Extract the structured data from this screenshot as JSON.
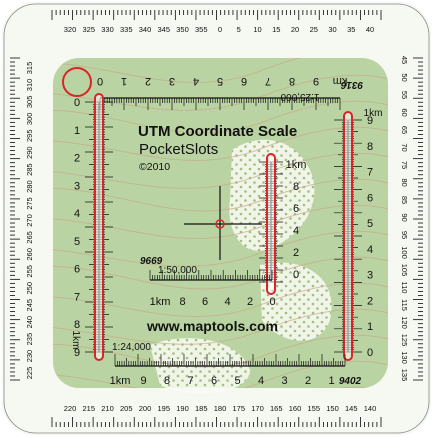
{
  "colors": {
    "map_green": "#b9d4a2",
    "map_green_dark": "#a6c78c",
    "map_light": "#e8efd9",
    "contour": "#c9a887",
    "ink": "#111111",
    "slot_red": "#d9242a",
    "frame": "#fbfbf7"
  },
  "compass": {
    "top_labels": [
      "320",
      "325",
      "330",
      "335",
      "340",
      "345",
      "350",
      "355",
      "0",
      "5",
      "10",
      "15",
      "20",
      "25",
      "30",
      "35",
      "40"
    ],
    "right_labels": [
      "45",
      "50",
      "55",
      "60",
      "65",
      "70",
      "75",
      "80",
      "85",
      "90",
      "95",
      "100",
      "105",
      "110",
      "115",
      "120",
      "125",
      "130",
      "135"
    ],
    "bottom_labels": [
      "220",
      "215",
      "210",
      "205",
      "200",
      "195",
      "190",
      "185",
      "180",
      "175",
      "170",
      "165",
      "160",
      "155",
      "150",
      "145",
      "140"
    ],
    "left_labels": [
      "315",
      "310",
      "305",
      "300",
      "295",
      "290",
      "285",
      "280",
      "275",
      "270",
      "265",
      "260",
      "255",
      "250",
      "245",
      "240",
      "235",
      "230",
      "225"
    ]
  },
  "scale_top": {
    "labels": [
      "0",
      "1",
      "2",
      "3",
      "4",
      "5",
      "6",
      "7",
      "8",
      "9",
      "km"
    ],
    "ratio": "1:25,000",
    "id": "9316"
  },
  "scale_left": {
    "labels": [
      "0",
      "1",
      "2",
      "3",
      "4",
      "5",
      "6",
      "7",
      "8",
      "9"
    ],
    "unit": "1km"
  },
  "scale_right": {
    "labels": [
      "9",
      "8",
      "7",
      "6",
      "5",
      "4",
      "3",
      "2",
      "1",
      "0"
    ],
    "unit": "1km"
  },
  "scale_bottom": {
    "labels": [
      "1km",
      "9",
      "8",
      "7",
      "6",
      "5",
      "4",
      "3",
      "2",
      "1"
    ],
    "ratio": "1:24,000",
    "id": "9402"
  },
  "scale_mid_vertical": {
    "labels": [
      "1km",
      "8",
      "6",
      "4",
      "2",
      "0"
    ]
  },
  "scale_mid_horizontal": {
    "labels": [
      "1km",
      "8",
      "6",
      "4",
      "2",
      "0"
    ],
    "ratio": "1:50,000",
    "id": "9669"
  },
  "title": {
    "line1": "UTM Coordinate Scale",
    "line2": "PocketSlots",
    "line3": "©2010"
  },
  "url": "www.maptools.com"
}
